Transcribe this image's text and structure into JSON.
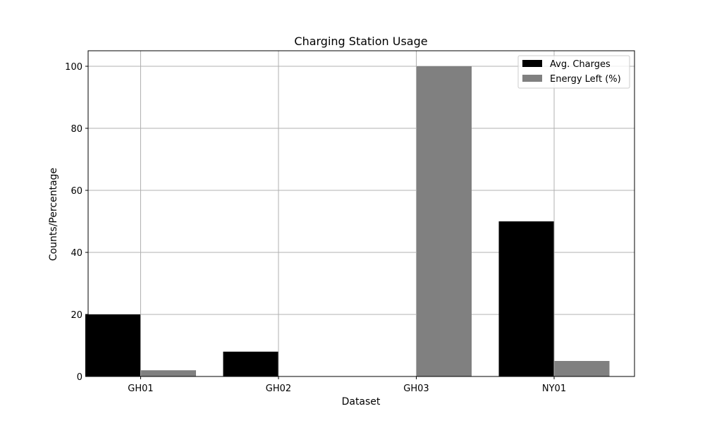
{
  "chart_data": {
    "type": "bar",
    "title": "Charging Station Usage",
    "xlabel": "Dataset",
    "ylabel": "Counts/Percentage",
    "categories": [
      "GH01",
      "GH02",
      "GH03",
      "NY01"
    ],
    "series": [
      {
        "name": "Avg. Charges",
        "values": [
          20,
          8,
          0,
          50
        ],
        "color": "#000000"
      },
      {
        "name": "Energy Left (%)",
        "values": [
          2,
          0,
          100,
          5
        ],
        "color": "#808080"
      }
    ],
    "ylim": [
      0,
      105
    ],
    "yticks": [
      "0",
      "20",
      "40",
      "60",
      "80",
      "100"
    ],
    "grid": true,
    "legend_position": "top-right"
  }
}
